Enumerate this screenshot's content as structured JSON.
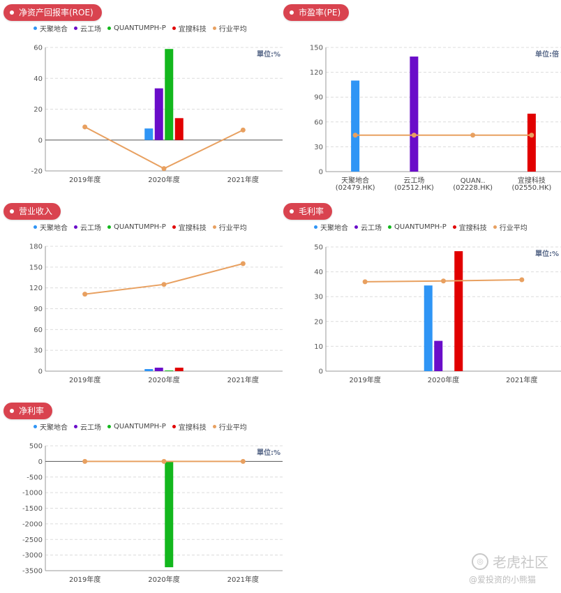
{
  "colors": {
    "tianju": "#2f95f5",
    "yungongchang": "#6a0dc9",
    "quantumph": "#13b71d",
    "yisou": "#e10000",
    "industry": "#e8a060"
  },
  "legend": [
    {
      "label": "天聚地合",
      "color": "#2f95f5"
    },
    {
      "label": "云工场",
      "color": "#6a0dc9"
    },
    {
      "label": "QUANTUMPH-P",
      "color": "#13b71d"
    },
    {
      "label": "宜搜科技",
      "color": "#e10000"
    },
    {
      "label": "行业平均",
      "color": "#e8a060"
    }
  ],
  "chart_data": [
    {
      "id": "roe",
      "type": "bar",
      "title": "净资产回报率(ROE)",
      "unit": "單位:%",
      "categories": [
        "2019年度",
        "2020年度",
        "2021年度"
      ],
      "ylim": [
        -20,
        60
      ],
      "yticks": [
        -20,
        0,
        20,
        40,
        60
      ],
      "bar_category": "2020年度",
      "bars": [
        {
          "name": "天聚地合",
          "value": 7.5
        },
        {
          "name": "云工场",
          "value": 33.5
        },
        {
          "name": "QUANTUMPH-P",
          "value": 59
        },
        {
          "name": "宜搜科技",
          "value": 14.2
        }
      ],
      "line": {
        "name": "行业平均",
        "values": [
          8.5,
          -18.5,
          6.5
        ]
      }
    },
    {
      "id": "pe",
      "type": "bar",
      "title": "市盈率(PE)",
      "unit": "单位:倍",
      "categories": [
        "天聚地合\n(02479.HK)",
        "云工场\n(02512.HK)",
        "QUAN..\n(02228.HK)",
        "宜搜科技\n(02550.HK)"
      ],
      "ylim": [
        0,
        150
      ],
      "yticks": [
        0,
        30,
        60,
        90,
        120,
        150
      ],
      "values": [
        110,
        139,
        0,
        70
      ],
      "line": {
        "name": "行业平均",
        "values": [
          44,
          44,
          44,
          44
        ]
      }
    },
    {
      "id": "revenue",
      "type": "bar",
      "title": "营业收入",
      "unit": "",
      "categories": [
        "2019年度",
        "2020年度",
        "2021年度"
      ],
      "ylim": [
        0,
        180
      ],
      "yticks": [
        0,
        30,
        60,
        90,
        120,
        150,
        180
      ],
      "bar_category": "2020年度",
      "bars": [
        {
          "name": "天聚地合",
          "value": 3
        },
        {
          "name": "云工场",
          "value": 5
        },
        {
          "name": "QUANTUMPH-P",
          "value": 1
        },
        {
          "name": "宜搜科技",
          "value": 5
        }
      ],
      "line": {
        "name": "行业平均",
        "values": [
          111,
          125,
          155
        ]
      }
    },
    {
      "id": "gross_margin",
      "type": "bar",
      "title": "毛利率",
      "unit": "單位:%",
      "categories": [
        "2019年度",
        "2020年度",
        "2021年度"
      ],
      "ylim": [
        0,
        50
      ],
      "yticks": [
        0,
        10,
        20,
        30,
        40,
        50
      ],
      "bar_category": "2020年度",
      "bars": [
        {
          "name": "天聚地合",
          "value": 34.5
        },
        {
          "name": "云工场",
          "value": 12.2
        },
        {
          "name": "QUANTUMPH-P",
          "value": 0
        },
        {
          "name": "宜搜科技",
          "value": 48.3
        }
      ],
      "line": {
        "name": "行业平均",
        "values": [
          36,
          36.3,
          36.8
        ]
      }
    },
    {
      "id": "net_margin",
      "type": "bar",
      "title": "净利率",
      "unit": "單位:%",
      "categories": [
        "2019年度",
        "2020年度",
        "2021年度"
      ],
      "ylim": [
        -3500,
        500
      ],
      "yticks": [
        -3500,
        -3000,
        -2500,
        -2000,
        -1500,
        -1000,
        -500,
        0,
        500
      ],
      "bar_category": "2020年度",
      "bars": [
        {
          "name": "天聚地合",
          "value": 0
        },
        {
          "name": "云工场",
          "value": 0
        },
        {
          "name": "QUANTUMPH-P",
          "value": -3390
        },
        {
          "name": "宜搜科技",
          "value": 0
        }
      ],
      "line": {
        "name": "行业平均",
        "values": [
          0,
          0,
          0
        ]
      }
    }
  ],
  "watermark": {
    "brand": "老虎社区",
    "credit": "@爱投资的小熊猫"
  }
}
